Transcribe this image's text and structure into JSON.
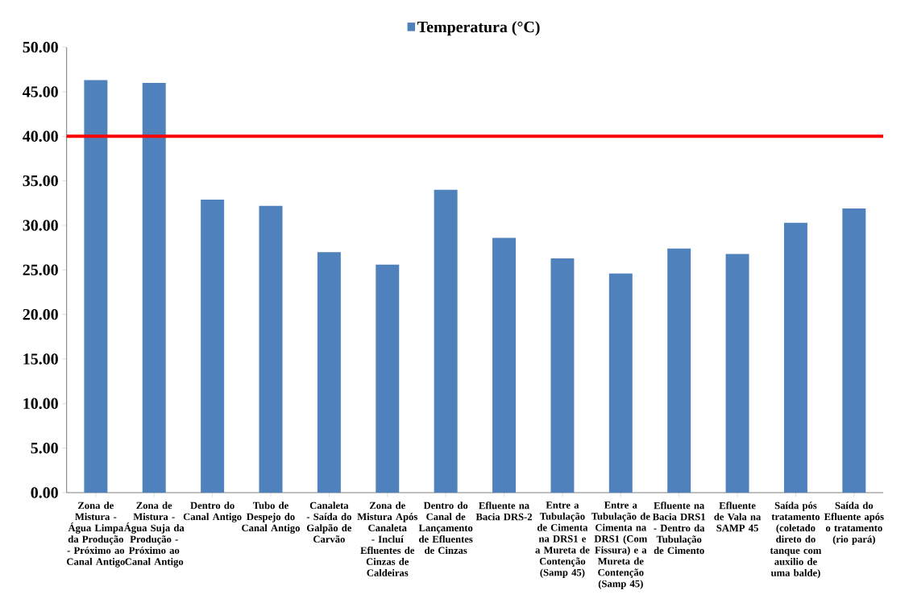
{
  "chart_data": {
    "type": "bar",
    "categories": [
      "Zona de Mistura - Água Limpa da Produção - Próximo ao Canal Antigo",
      "Zona de Mistura - Água Suja da Produção - Próximo ao Canal Antigo",
      "Dentro do Canal Antigo",
      "Tubo de Despejo do Canal Antigo",
      "Canaleta - Saída do Galpão de Carvão",
      "Zona de Mistura Após Canaleta - Incluí Efluentes de Cinzas de Caldeiras",
      "Dentro do Canal de Lançamento de Efluentes de Cinzas",
      "Efluente na Bacia DRS-2",
      "Entre a Tubulação de Cimenta na DRS1 e a Mureta de Contenção (Samp 45)",
      "Entre a Tubulação de Cimenta na DRS1 (Com Fissura) e a Mureta de Contenção (Samp 45)",
      "Efluente na Bacia DRS1 - Dentro da Tubulação de Cimento",
      "Efluente de Vala na SAMP 45",
      "Saída pós tratamento (coletado direto do tanque com auxilio de uma balde)",
      "Saída do Efluente após o tratamento (rio pará)"
    ],
    "series": [
      {
        "name": "Temperatura (°C)",
        "color": "#4f81bd",
        "values": [
          46.3,
          46.0,
          32.9,
          32.2,
          27.0,
          25.6,
          34.0,
          28.6,
          26.3,
          24.6,
          27.4,
          26.8,
          30.3,
          31.9
        ]
      }
    ],
    "ylim": [
      0,
      50
    ],
    "yticks": [
      {
        "value": 0,
        "label": "0.00"
      },
      {
        "value": 5,
        "label": "5.00"
      },
      {
        "value": 10,
        "label": "10.00"
      },
      {
        "value": 15,
        "label": "15.00"
      },
      {
        "value": 20,
        "label": "20.00"
      },
      {
        "value": 25,
        "label": "25.00"
      },
      {
        "value": 30,
        "label": "30.00"
      },
      {
        "value": 35,
        "label": "35.00"
      },
      {
        "value": 40,
        "label": "40.00"
      },
      {
        "value": 45,
        "label": "45.00"
      },
      {
        "value": 50,
        "label": "50.00"
      }
    ],
    "ref_lines": [
      {
        "axis": "y",
        "value": 40,
        "color": "#ff0000"
      }
    ],
    "legend": "top",
    "grid": false
  }
}
